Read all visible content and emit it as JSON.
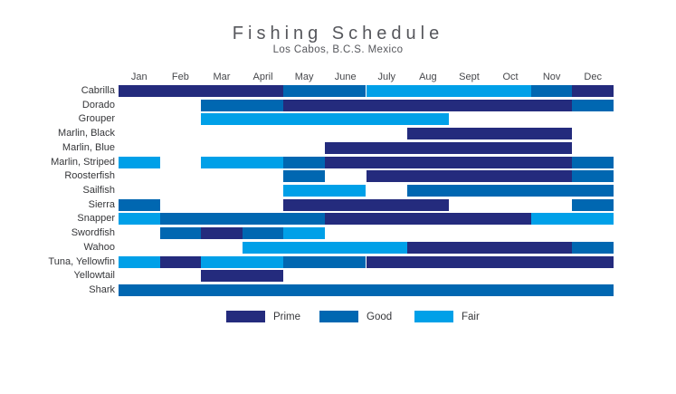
{
  "title": "Fishing Schedule",
  "subtitle": "Los Cabos, B.C.S. Mexico",
  "chart_data": {
    "type": "heatmap",
    "title": "Fishing Schedule",
    "subtitle": "Los Cabos, B.C.S. Mexico",
    "x_categories": [
      "Jan",
      "Feb",
      "Mar",
      "April",
      "May",
      "June",
      "July",
      "Aug",
      "Sept",
      "Oct",
      "Nov",
      "Dec"
    ],
    "legend_position": "bottom",
    "legend": [
      {
        "key": "prime",
        "label": "Prime",
        "color": "#242b7d"
      },
      {
        "key": "good",
        "label": "Good",
        "color": "#0067b1"
      },
      {
        "key": "fair",
        "label": "Fair",
        "color": "#00a0e8"
      }
    ],
    "rows": [
      {
        "name": "Cabrilla",
        "segments": [
          {
            "from": 1,
            "to": 4,
            "level": "prime"
          },
          {
            "from": 5,
            "to": 6,
            "level": "good"
          },
          {
            "from": 7,
            "to": 10,
            "level": "fair"
          },
          {
            "from": 11,
            "to": 11,
            "level": "good"
          },
          {
            "from": 12,
            "to": 12,
            "level": "prime"
          }
        ]
      },
      {
        "name": "Dorado",
        "segments": [
          {
            "from": 3,
            "to": 4,
            "level": "good"
          },
          {
            "from": 5,
            "to": 11,
            "level": "prime"
          },
          {
            "from": 12,
            "to": 12,
            "level": "good"
          }
        ]
      },
      {
        "name": "Grouper",
        "segments": [
          {
            "from": 3,
            "to": 8,
            "level": "fair"
          }
        ]
      },
      {
        "name": "Marlin, Black",
        "segments": [
          {
            "from": 8,
            "to": 11,
            "level": "prime"
          }
        ]
      },
      {
        "name": "Marlin, Blue",
        "segments": [
          {
            "from": 6,
            "to": 11,
            "level": "prime"
          }
        ]
      },
      {
        "name": "Marlin, Striped",
        "segments": [
          {
            "from": 1,
            "to": 1,
            "level": "fair"
          },
          {
            "from": 3,
            "to": 4,
            "level": "fair"
          },
          {
            "from": 5,
            "to": 5,
            "level": "good"
          },
          {
            "from": 6,
            "to": 11,
            "level": "prime"
          },
          {
            "from": 12,
            "to": 12,
            "level": "good"
          }
        ]
      },
      {
        "name": "Roosterfish",
        "segments": [
          {
            "from": 5,
            "to": 5,
            "level": "good"
          },
          {
            "from": 7,
            "to": 11,
            "level": "prime"
          },
          {
            "from": 12,
            "to": 12,
            "level": "good"
          }
        ]
      },
      {
        "name": "Sailfish",
        "segments": [
          {
            "from": 5,
            "to": 6,
            "level": "fair"
          },
          {
            "from": 8,
            "to": 12,
            "level": "good"
          }
        ]
      },
      {
        "name": "Sierra",
        "segments": [
          {
            "from": 1,
            "to": 1,
            "level": "good"
          },
          {
            "from": 5,
            "to": 8,
            "level": "prime"
          },
          {
            "from": 12,
            "to": 12,
            "level": "good"
          }
        ]
      },
      {
        "name": "Snapper",
        "segments": [
          {
            "from": 1,
            "to": 1,
            "level": "fair"
          },
          {
            "from": 2,
            "to": 5,
            "level": "good"
          },
          {
            "from": 6,
            "to": 10,
            "level": "prime"
          },
          {
            "from": 11,
            "to": 12,
            "level": "fair"
          }
        ]
      },
      {
        "name": "Swordfish",
        "segments": [
          {
            "from": 2,
            "to": 2,
            "level": "good"
          },
          {
            "from": 3,
            "to": 3,
            "level": "prime"
          },
          {
            "from": 4,
            "to": 4,
            "level": "good"
          },
          {
            "from": 5,
            "to": 5,
            "level": "fair"
          }
        ]
      },
      {
        "name": "Wahoo",
        "segments": [
          {
            "from": 4,
            "to": 7,
            "level": "fair"
          },
          {
            "from": 8,
            "to": 11,
            "level": "prime"
          },
          {
            "from": 12,
            "to": 12,
            "level": "good"
          }
        ]
      },
      {
        "name": "Tuna, Yellowfin",
        "segments": [
          {
            "from": 1,
            "to": 1,
            "level": "fair"
          },
          {
            "from": 2,
            "to": 2,
            "level": "prime"
          },
          {
            "from": 3,
            "to": 4,
            "level": "fair"
          },
          {
            "from": 5,
            "to": 6,
            "level": "good"
          },
          {
            "from": 7,
            "to": 12,
            "level": "prime"
          }
        ]
      },
      {
        "name": "Yellowtail",
        "segments": [
          {
            "from": 3,
            "to": 4,
            "level": "prime"
          }
        ]
      },
      {
        "name": "Shark",
        "segments": [
          {
            "from": 1,
            "to": 12,
            "level": "good"
          }
        ]
      }
    ]
  },
  "layout_colors": {
    "title_text": "#56575c",
    "label_text": "#353639"
  }
}
